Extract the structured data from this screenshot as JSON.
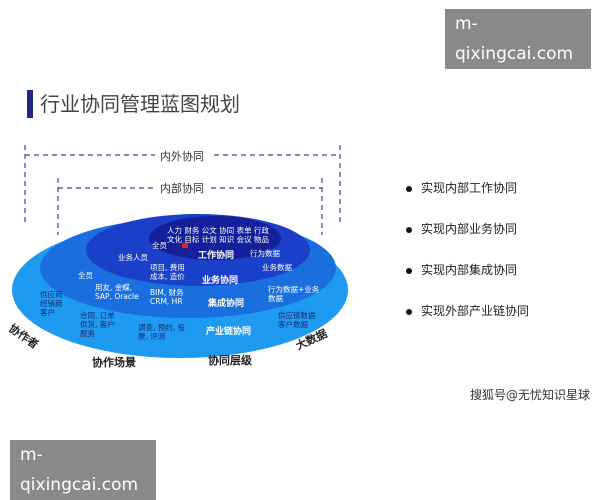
{
  "watermark_top": "m-qixingcai.com",
  "watermark_bottom": "m-qixingcai.com",
  "title": "行业协同管理蓝图规划",
  "scopes": {
    "outer": "内外协同",
    "inner": "内部协同"
  },
  "layers": {
    "work": {
      "label": "工作协同",
      "items": [
        "人力 财务 公文 协同 表单 行政",
        "文化 目标 计划 知识 会议 物品"
      ],
      "left": "全员",
      "right": "行为数据"
    },
    "business": {
      "label": "业务协同",
      "left": "业务人员",
      "middle": [
        "项目, 费用",
        "成本, 造价"
      ],
      "right": "业务数据"
    },
    "integration": {
      "label": "集成协同",
      "left": "全员",
      "middle1": [
        "用友, 金蝶,",
        "SAP, Oracle"
      ],
      "middle2": [
        "BIM, 财务",
        "CRM, HR"
      ],
      "right": [
        "行为数据+业务",
        "数据"
      ]
    },
    "industry": {
      "label": "产业链协同",
      "left": [
        "供应商",
        "经销商",
        "客户"
      ],
      "middle1": [
        "合同, 订单",
        "供货, 客户",
        "服务"
      ],
      "middle2": [
        "调查, 预约, 投",
        "票, 评测"
      ],
      "right": [
        "供应链数据",
        "客户数据"
      ]
    }
  },
  "axis_labels": {
    "collaborator": "协作者",
    "scenario": "协作场景",
    "level": "协同层级",
    "bigdata": "大数据"
  },
  "bullets": [
    "实现内部工作协同",
    "实现内部业务协同",
    "实现内部集成协同",
    "实现外部产业链协同"
  ],
  "credit": "搜狐号@无忧知识星球",
  "colors": {
    "outer": "#1e9bf0",
    "integration": "#1a6fe0",
    "business": "#1a3fc8",
    "work": "#141f9a",
    "title_bar": "#1f2a7a"
  }
}
